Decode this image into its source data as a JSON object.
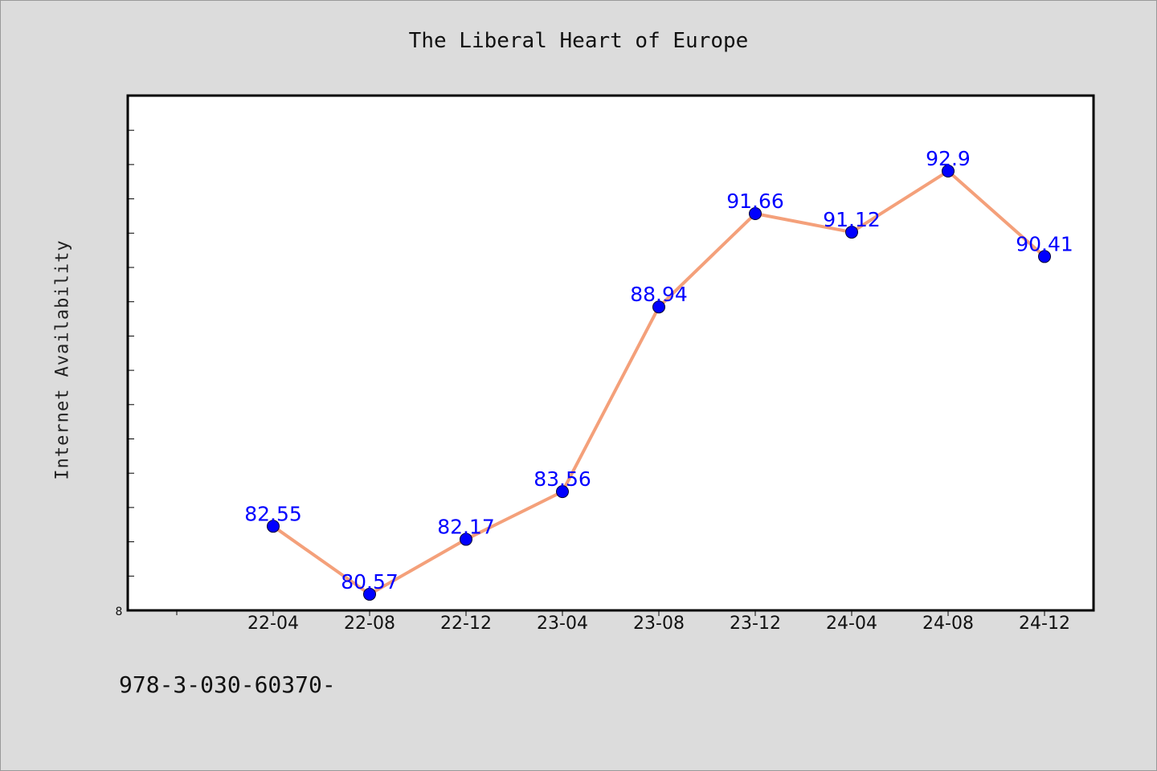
{
  "chart_data": {
    "type": "line",
    "title": "The Liberal Heart of Europe",
    "xlabel": "",
    "ylabel": "Internet Availability",
    "categories": [
      "22-04",
      "22-08",
      "22-12",
      "23-04",
      "23-08",
      "23-12",
      "24-04",
      "24-08",
      "24-12"
    ],
    "series": [
      {
        "values": [
          82.55,
          80.57,
          82.17,
          83.56,
          88.94,
          91.66,
          91.12,
          92.9,
          90.41
        ],
        "labels": [
          "82.55",
          "80.57",
          "82.17",
          "83.56",
          "88.94",
          "91.66",
          "91.12",
          "92.9",
          "90.41"
        ]
      }
    ],
    "ylim": [
      80.1,
      95.1
    ],
    "ylim_label": "8",
    "grid": false,
    "legend": "none",
    "colors": {
      "line": "#f4a07a",
      "marker": "#0000ff",
      "label": "#0000ff",
      "plot_bg": "#ffffff",
      "page_bg": "#dcdcdc"
    }
  },
  "footer": {
    "text": "978-3-030-60370-"
  }
}
